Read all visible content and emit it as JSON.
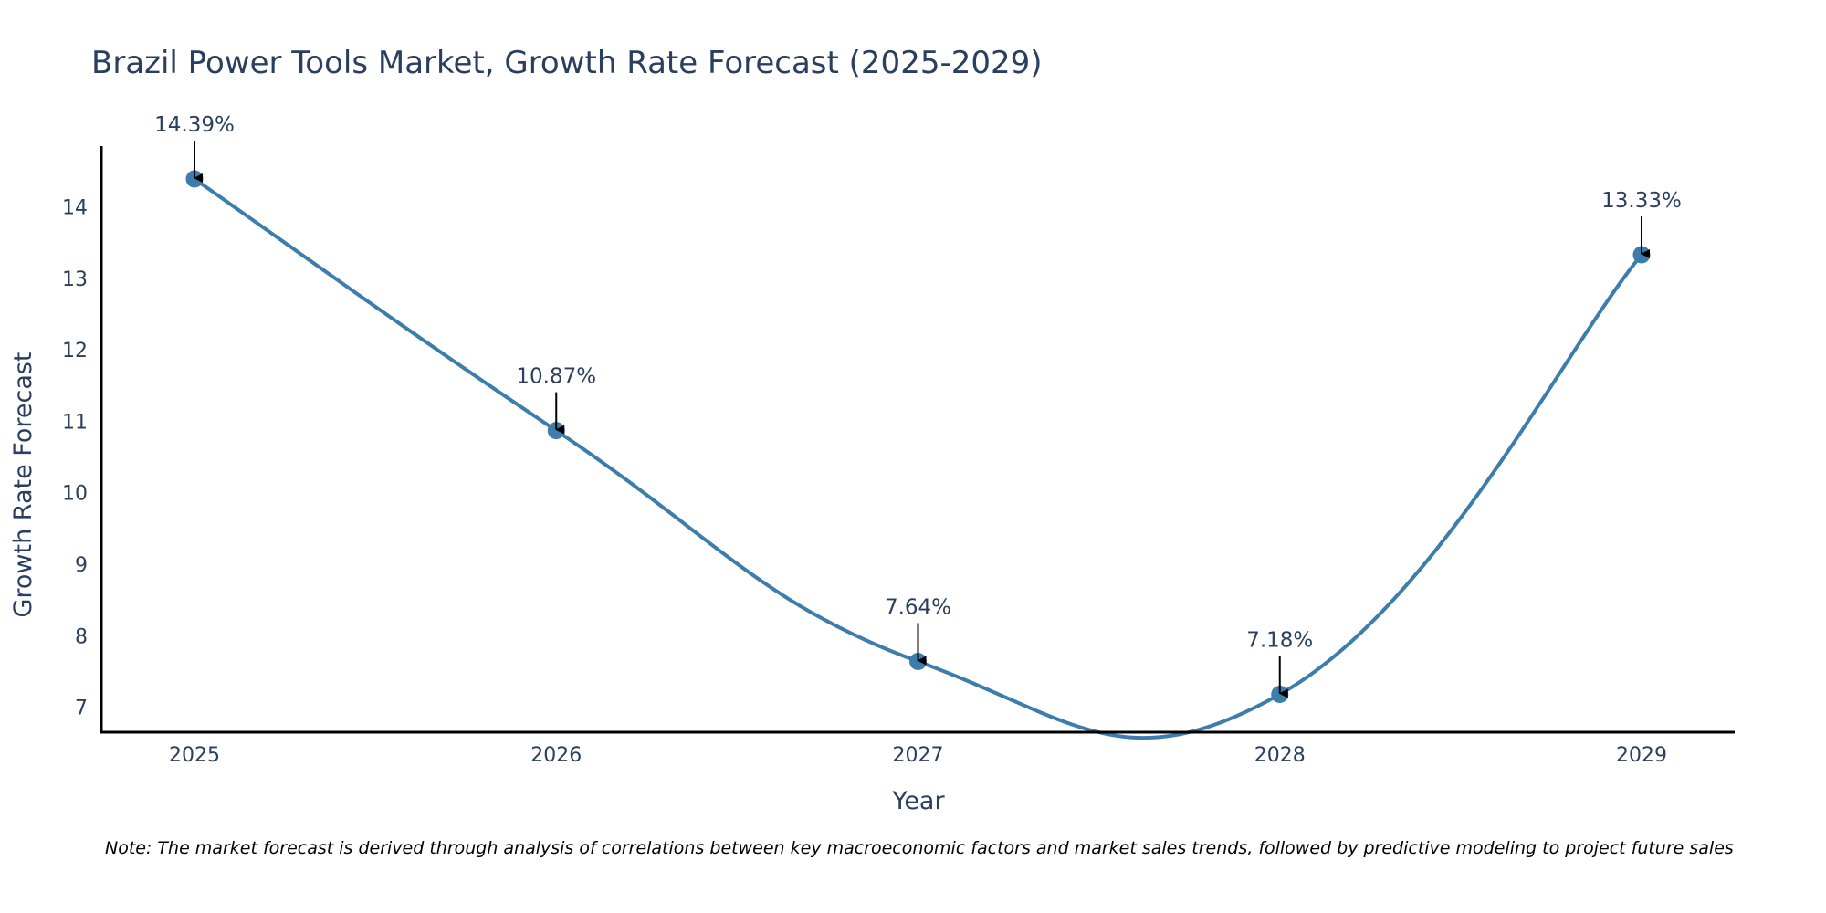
{
  "chart_data": {
    "type": "line",
    "title": "Brazil Power Tools Market, Growth Rate Forecast (2025-2029)",
    "xlabel": "Year",
    "ylabel": "Growth Rate Forecast",
    "categories": [
      "2025",
      "2026",
      "2027",
      "2028",
      "2029"
    ],
    "series": [
      {
        "name": "Growth Rate Forecast",
        "values": [
          14.39,
          10.87,
          7.64,
          7.18,
          13.33
        ],
        "labels": [
          "14.39%",
          "10.87%",
          "7.64%",
          "7.18%",
          "13.33%"
        ]
      }
    ],
    "yticks": [
      7,
      8,
      9,
      10,
      11,
      12,
      13,
      14
    ],
    "ylim": [
      6.65,
      14.85
    ],
    "grid": false,
    "line_color": "#3d7dab",
    "marker_color": "#3d7dab",
    "annotation_arrow_color": "#000000"
  },
  "note": "Note: The market forecast is derived through analysis of correlations between key macroeconomic factors and market sales trends, followed by predictive modeling to project future sales"
}
